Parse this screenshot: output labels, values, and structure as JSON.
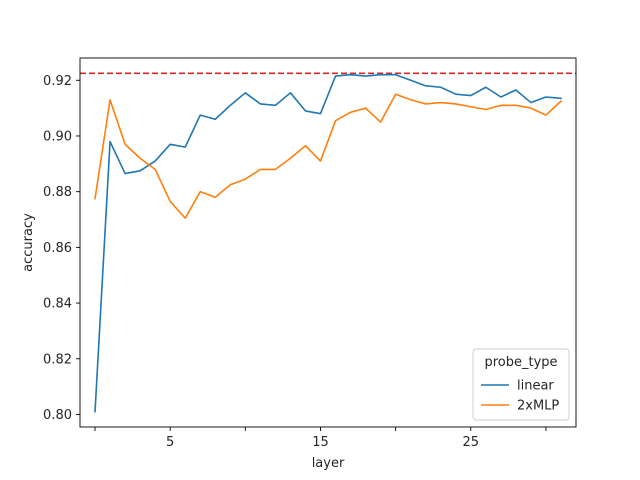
{
  "chart_data": {
    "type": "line",
    "xlabel": "layer",
    "ylabel": "accuracy",
    "xlim": [
      -1,
      32
    ],
    "ylim": [
      0.7955,
      0.928
    ],
    "xticks": [
      5,
      15,
      25
    ],
    "xticks_minor": [
      0,
      10,
      20,
      30
    ],
    "yticks": [
      0.8,
      0.82,
      0.84,
      0.86,
      0.88,
      0.9,
      0.92
    ],
    "ytick_labels": [
      "0.80",
      "0.82",
      "0.84",
      "0.86",
      "0.88",
      "0.90",
      "0.92"
    ],
    "grid": false,
    "legend": {
      "title": "probe_type",
      "position": "lower-right"
    },
    "reference_line": {
      "y": 0.9225,
      "color": "#d62728",
      "style": "dashed"
    },
    "x": [
      0,
      1,
      2,
      3,
      4,
      5,
      6,
      7,
      8,
      9,
      10,
      11,
      12,
      13,
      14,
      15,
      16,
      17,
      18,
      19,
      20,
      21,
      22,
      23,
      24,
      25,
      26,
      27,
      28,
      29,
      30,
      31
    ],
    "series": [
      {
        "name": "linear",
        "color": "#1f77b4",
        "values": [
          0.801,
          0.898,
          0.8865,
          0.8875,
          0.891,
          0.897,
          0.896,
          0.9075,
          0.906,
          0.911,
          0.9155,
          0.9115,
          0.911,
          0.9155,
          0.909,
          0.908,
          0.9215,
          0.922,
          0.9215,
          0.922,
          0.922,
          0.92,
          0.918,
          0.9175,
          0.915,
          0.9145,
          0.9175,
          0.914,
          0.9165,
          0.912,
          0.914,
          0.9135
        ]
      },
      {
        "name": "2xMLP",
        "color": "#ff7f0e",
        "values": [
          0.8775,
          0.913,
          0.897,
          0.892,
          0.888,
          0.8765,
          0.8705,
          0.88,
          0.878,
          0.8825,
          0.8845,
          0.888,
          0.888,
          0.892,
          0.8965,
          0.891,
          0.9055,
          0.9085,
          0.91,
          0.905,
          0.915,
          0.913,
          0.9115,
          0.912,
          0.9115,
          0.9105,
          0.9095,
          0.911,
          0.911,
          0.91,
          0.9075,
          0.9125
        ]
      }
    ]
  }
}
